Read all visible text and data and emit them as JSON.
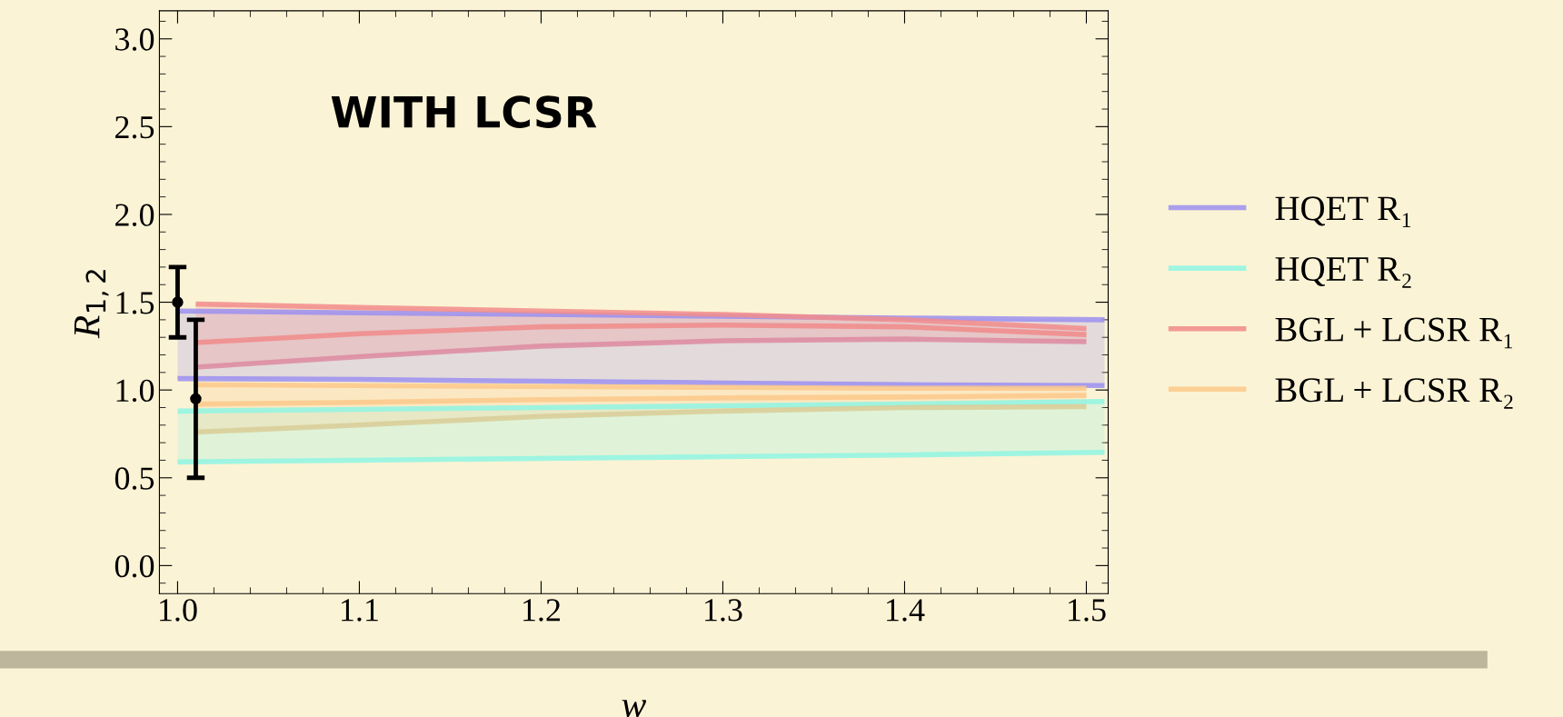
{
  "chart_data": {
    "type": "line",
    "xlabel": "w",
    "ylabel": "R$_{1,2}$",
    "annotations": [
      {
        "text": "WITH LCSR"
      }
    ],
    "xlim": [
      0.99,
      1.512
    ],
    "ylim": [
      -0.16,
      3.16
    ],
    "xticks": [
      {
        "value": 1,
        "label": "1.0"
      },
      1.1,
      1.2,
      1.3,
      1.4,
      1.5
    ],
    "yticks": [
      {
        "value": 0,
        "label": "0.0"
      },
      0.5,
      {
        "value": 1,
        "label": "1.0"
      },
      1.5,
      {
        "value": 2,
        "label": "2.0"
      },
      2.5,
      {
        "value": 3,
        "label": "3.0"
      }
    ],
    "grid": false,
    "legend": "right",
    "line_style": "solid",
    "marker": "none",
    "series": [
      {
        "name": "HQET R₁",
        "color": "#9b8ff0",
        "x": [
          1.0,
          1.1,
          1.2,
          1.3,
          1.4,
          1.51
        ],
        "values": [
          1.45,
          1.44,
          1.43,
          1.42,
          1.41,
          1.4
        ],
        "lower": [
          1.065,
          1.06,
          1.05,
          1.04,
          1.03,
          1.025
        ],
        "upper": [
          1.45,
          1.44,
          1.43,
          1.42,
          1.41,
          1.4
        ]
      },
      {
        "color": "#9b8ff0",
        "x": [
          1.0,
          1.1,
          1.2,
          1.3,
          1.4,
          1.51
        ],
        "values": [
          1.065,
          1.06,
          1.05,
          1.04,
          1.03,
          1.025
        ]
      },
      {
        "name": "HQET R₂",
        "color": "#8ff5e3",
        "x": [
          1.0,
          1.1,
          1.2,
          1.3,
          1.4,
          1.51
        ],
        "values": [
          0.88,
          0.89,
          0.9,
          0.91,
          0.92,
          0.935
        ],
        "lower": [
          0.59,
          0.6,
          0.61,
          0.62,
          0.63,
          0.645
        ],
        "upper": [
          0.88,
          0.89,
          0.9,
          0.91,
          0.92,
          0.935
        ]
      },
      {
        "color": "#8ff5e3",
        "x": [
          1.0,
          1.1,
          1.2,
          1.3,
          1.4,
          1.51
        ],
        "values": [
          0.59,
          0.6,
          0.61,
          0.62,
          0.63,
          0.645
        ]
      },
      {
        "name": "BGL + LCSR R₁",
        "color": "#f08a8a",
        "x": [
          1.01,
          1.1,
          1.2,
          1.3,
          1.4,
          1.5
        ],
        "values": [
          1.27,
          1.32,
          1.36,
          1.37,
          1.36,
          1.315
        ],
        "lower": [
          1.13,
          1.19,
          1.25,
          1.28,
          1.29,
          1.275
        ],
        "upper": [
          1.49,
          1.47,
          1.45,
          1.43,
          1.4,
          1.35
        ]
      },
      {
        "color": "#f28c8c",
        "x": [
          1.01,
          1.1,
          1.2,
          1.3,
          1.4,
          1.5
        ],
        "values": [
          1.49,
          1.47,
          1.45,
          1.43,
          1.4,
          1.35
        ]
      },
      {
        "color": "#dd8aa0",
        "x": [
          1.01,
          1.1,
          1.2,
          1.3,
          1.4,
          1.5
        ],
        "values": [
          1.13,
          1.19,
          1.25,
          1.28,
          1.29,
          1.275
        ]
      },
      {
        "name": "BGL + LCSR R₂",
        "color": "#fcc88a",
        "x": [
          1.01,
          1.1,
          1.2,
          1.3,
          1.4,
          1.5
        ],
        "values": [
          0.92,
          0.93,
          0.945,
          0.955,
          0.96,
          0.97
        ],
        "lower": [
          0.76,
          0.8,
          0.85,
          0.88,
          0.9,
          0.905
        ],
        "upper": [
          1.03,
          1.025,
          1.02,
          1.015,
          1.01,
          1.01
        ]
      },
      {
        "color": "#fcc88a",
        "x": [
          1.01,
          1.1,
          1.2,
          1.3,
          1.4,
          1.5
        ],
        "values": [
          1.03,
          1.025,
          1.02,
          1.015,
          1.01,
          1.01
        ]
      },
      {
        "color": "#d8cc98",
        "x": [
          1.01,
          1.1,
          1.2,
          1.3,
          1.4,
          1.5
        ],
        "values": [
          0.76,
          0.8,
          0.85,
          0.88,
          0.9,
          0.905
        ]
      },
      {
        "type": "scatter",
        "color": "#000000",
        "marker": "circle",
        "x": [
          1.0,
          1.01
        ],
        "values": [
          1.5,
          0.95
        ],
        "errors": [
          0.2,
          [
            0.5,
            1.4
          ]
        ]
      }
    ]
  }
}
